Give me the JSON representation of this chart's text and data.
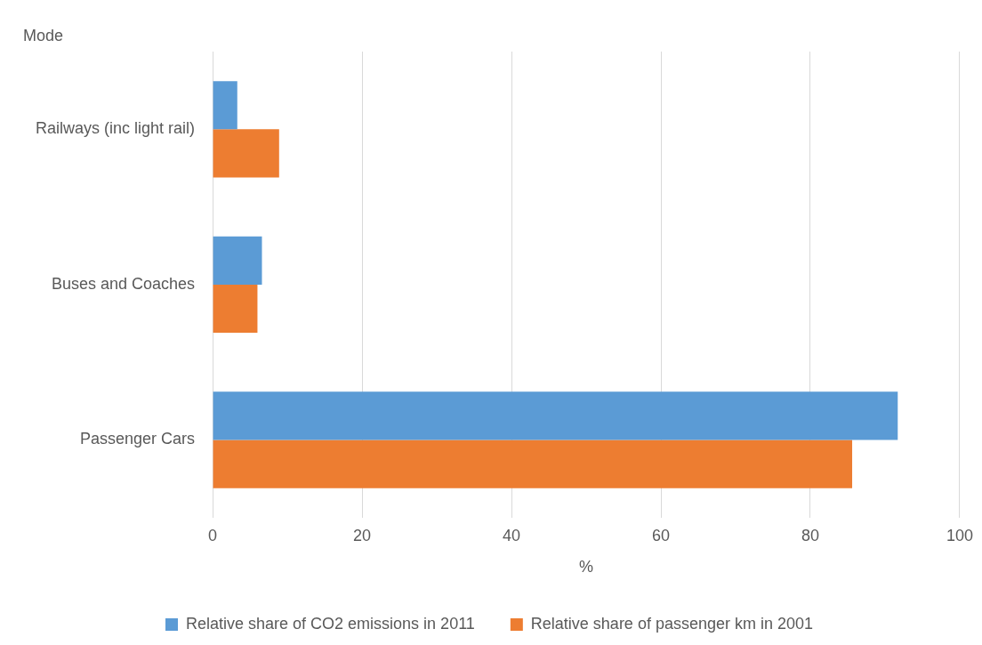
{
  "chart_data": {
    "type": "bar",
    "orientation": "horizontal",
    "xlabel": "%",
    "ylabel": "Mode",
    "categories": [
      "Railways (inc light rail)",
      "Buses and Coaches",
      "Passenger Cars"
    ],
    "series": [
      {
        "name": "Relative share of CO2 emissions in 2011",
        "color": "#5b9bd5",
        "values": [
          3.3,
          6.6,
          91.7
        ]
      },
      {
        "name": "Relative share of passenger km in 2001",
        "color": "#ed7d31",
        "values": [
          8.9,
          6.0,
          85.6
        ]
      }
    ],
    "xlim": [
      0,
      100
    ],
    "xticks": [
      0,
      20,
      40,
      60,
      80,
      100
    ],
    "grid": "x",
    "legend": "bottom"
  }
}
